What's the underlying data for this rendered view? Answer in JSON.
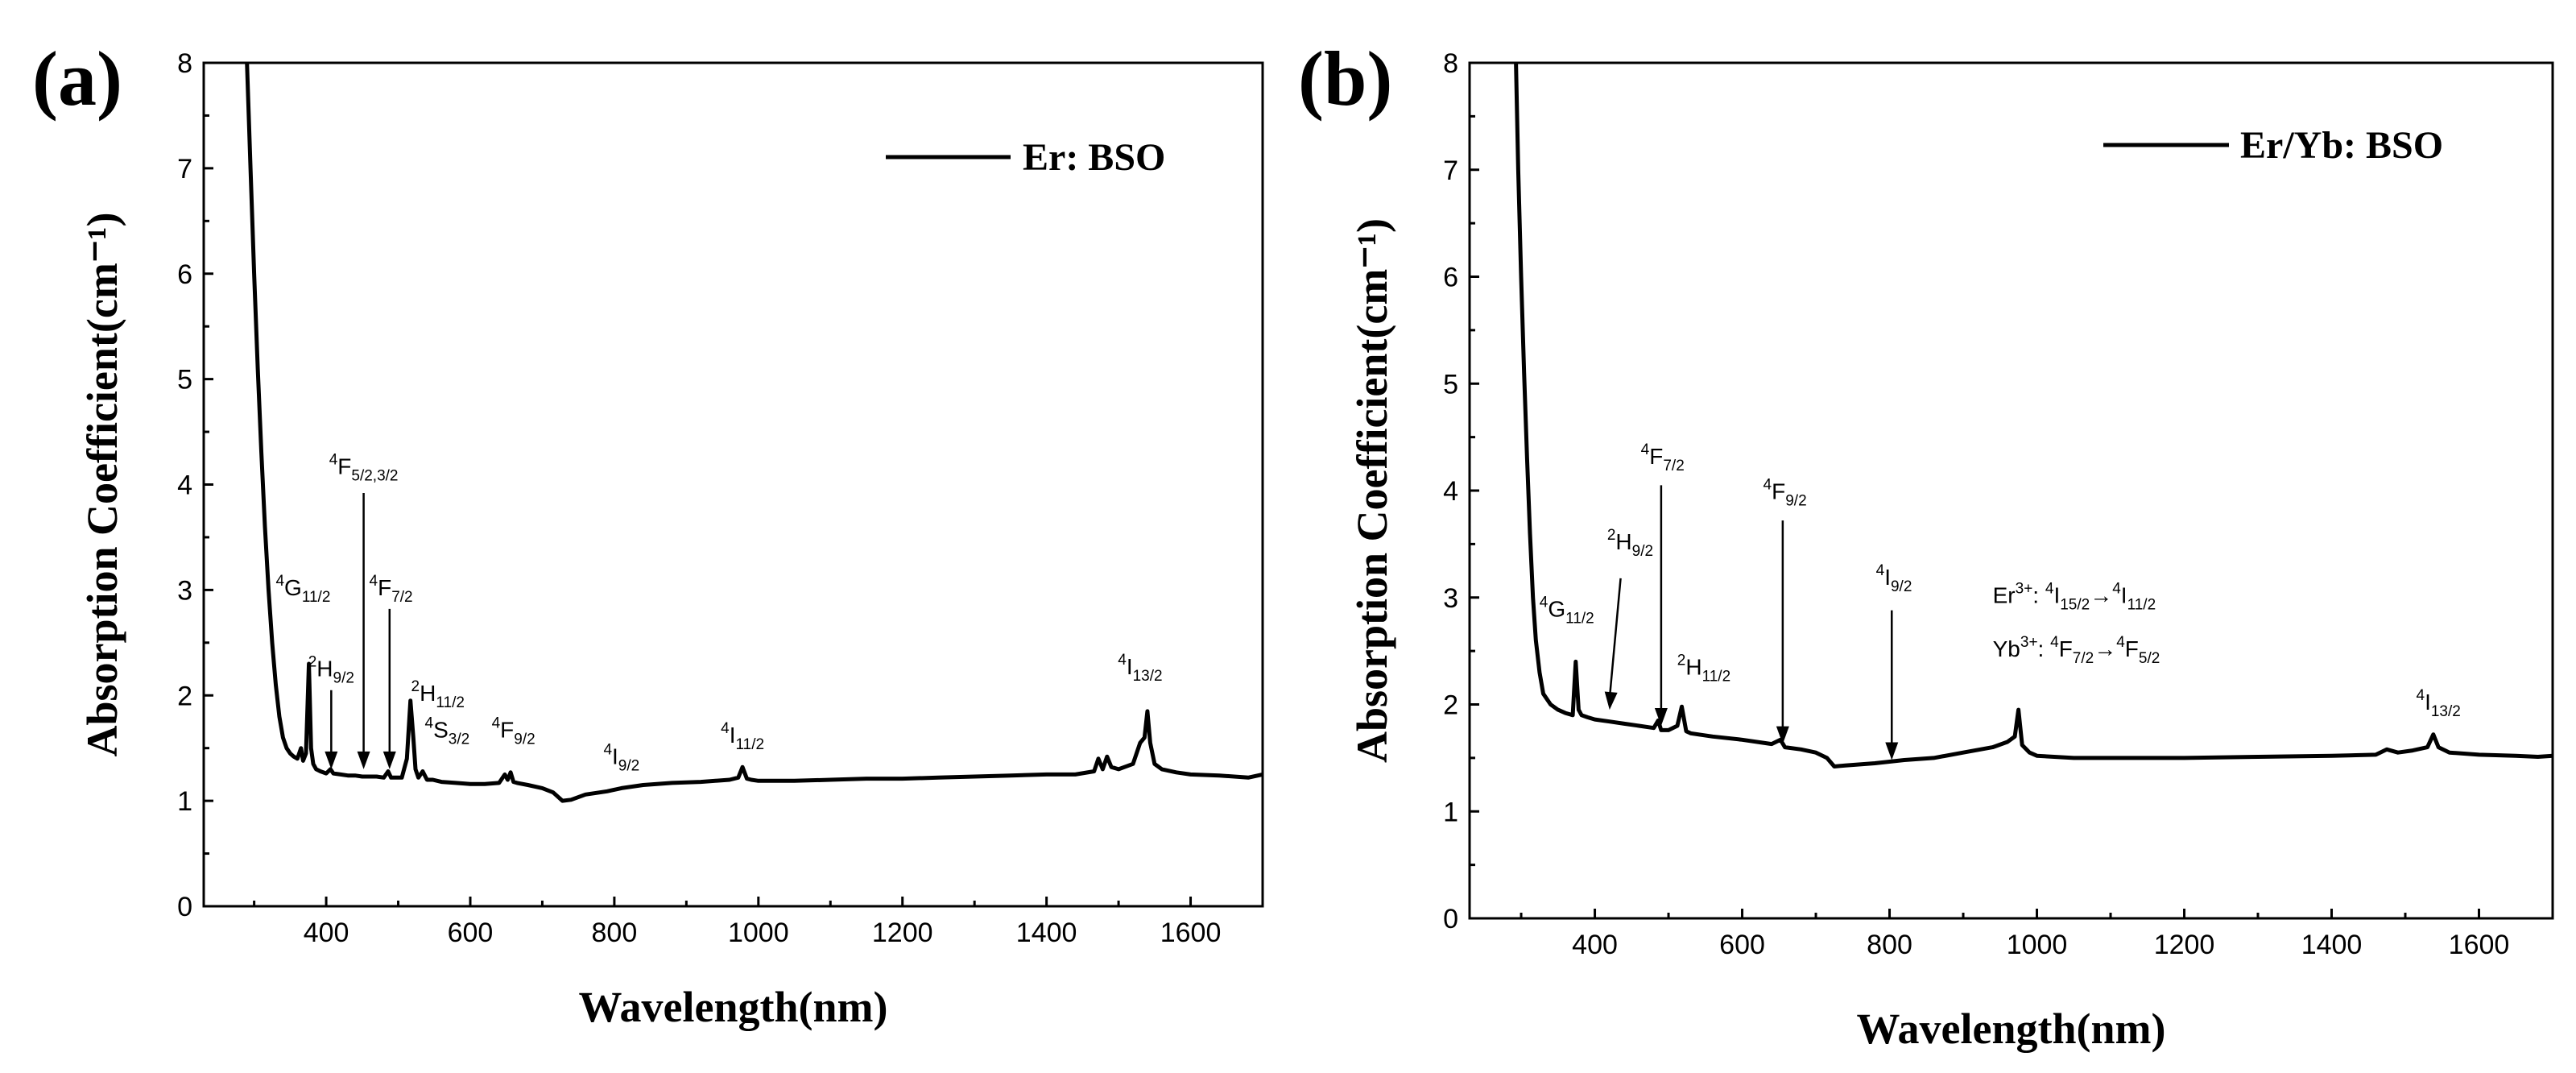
{
  "chart_data": [
    {
      "panel": "(a)",
      "type": "line",
      "xlabel": "Wavelength(nm)",
      "ylabel": "Absorption Coefficient(cm⁻¹)",
      "xlim": [
        230,
        1700
      ],
      "ylim": [
        0,
        8
      ],
      "xticks": [
        400,
        600,
        800,
        1000,
        1200,
        1400,
        1600
      ],
      "yticks": [
        0,
        1,
        2,
        3,
        4,
        5,
        6,
        7,
        8
      ],
      "legend": {
        "label": "Er: BSO",
        "position": "top-right"
      },
      "series": [
        {
          "name": "Er: BSO",
          "x": [
            290,
            295,
            300,
            305,
            310,
            315,
            320,
            325,
            330,
            335,
            340,
            345,
            350,
            355,
            360,
            365,
            368,
            372,
            376,
            379,
            382,
            386,
            392,
            400,
            406,
            410,
            420,
            430,
            440,
            450,
            460,
            470,
            480,
            486,
            490,
            495,
            505,
            512,
            517,
            521,
            524,
            528,
            534,
            540,
            548,
            560,
            580,
            600,
            620,
            640,
            648,
            652,
            656,
            660,
            665,
            680,
            700,
            715,
            728,
            740,
            760,
            790,
            810,
            840,
            880,
            920,
            960,
            972,
            978,
            984,
            990,
            1000,
            1050,
            1100,
            1150,
            1200,
            1250,
            1300,
            1350,
            1400,
            1440,
            1466,
            1472,
            1478,
            1484,
            1490,
            1500,
            1520,
            1530,
            1536,
            1540,
            1544,
            1550,
            1560,
            1580,
            1600,
            1640,
            1680,
            1700
          ],
          "y": [
            8.0,
            7.0,
            6.0,
            5.1,
            4.3,
            3.6,
            3.0,
            2.5,
            2.1,
            1.8,
            1.6,
            1.5,
            1.45,
            1.42,
            1.4,
            1.5,
            1.38,
            1.45,
            2.3,
            1.5,
            1.35,
            1.3,
            1.28,
            1.26,
            1.3,
            1.26,
            1.25,
            1.24,
            1.24,
            1.23,
            1.23,
            1.23,
            1.22,
            1.28,
            1.22,
            1.22,
            1.22,
            1.4,
            1.95,
            1.6,
            1.3,
            1.22,
            1.28,
            1.2,
            1.2,
            1.18,
            1.17,
            1.16,
            1.16,
            1.17,
            1.25,
            1.2,
            1.27,
            1.18,
            1.17,
            1.15,
            1.12,
            1.08,
            1.0,
            1.01,
            1.06,
            1.09,
            1.12,
            1.15,
            1.17,
            1.18,
            1.2,
            1.22,
            1.32,
            1.21,
            1.2,
            1.19,
            1.19,
            1.2,
            1.21,
            1.21,
            1.22,
            1.23,
            1.24,
            1.25,
            1.25,
            1.28,
            1.4,
            1.3,
            1.42,
            1.32,
            1.3,
            1.35,
            1.55,
            1.6,
            1.85,
            1.55,
            1.35,
            1.3,
            1.27,
            1.25,
            1.24,
            1.22,
            1.25
          ]
        }
      ],
      "annotations": [
        {
          "sup": "4",
          "base": "G",
          "sub": "11/2",
          "x": 368,
          "y": 2.95,
          "arrow": false
        },
        {
          "sup": "2",
          "base": "H",
          "sub": "9/2",
          "x": 407,
          "y": 2.18,
          "arrow": true,
          "ax": 407,
          "ay_from": 2.05,
          "ay_to": 1.3
        },
        {
          "sup": "4",
          "base": "F",
          "sub": "5/2,3/2",
          "x": 452,
          "y": 4.1,
          "arrow": true,
          "ax": 452,
          "ay_from": 3.92,
          "ay_to": 1.3
        },
        {
          "sup": "4",
          "base": "F",
          "sub": "7/2",
          "x": 490,
          "y": 2.95,
          "arrow": true,
          "ax": 488,
          "ay_from": 2.82,
          "ay_to": 1.3
        },
        {
          "sup": "2",
          "base": "H",
          "sub": "11/2",
          "x": 555,
          "y": 1.95,
          "arrow": false
        },
        {
          "sup": "4",
          "base": "S",
          "sub": "3/2",
          "x": 568,
          "y": 1.6,
          "arrow": false
        },
        {
          "sup": "4",
          "base": "F",
          "sub": "9/2",
          "x": 660,
          "y": 1.6,
          "arrow": false
        },
        {
          "sup": "4",
          "base": "I",
          "sub": "9/2",
          "x": 810,
          "y": 1.35,
          "arrow": false
        },
        {
          "sup": "4",
          "base": "I",
          "sub": "11/2",
          "x": 978,
          "y": 1.55,
          "arrow": false
        },
        {
          "sup": "4",
          "base": "I",
          "sub": "13/2",
          "x": 1530,
          "y": 2.2,
          "arrow": false
        }
      ]
    },
    {
      "panel": "(b)",
      "type": "line",
      "xlabel": "Wavelength(nm)",
      "ylabel": "Absorption Coefficient(cm⁻¹)",
      "xlim": [
        230,
        1700
      ],
      "ylim": [
        0,
        8
      ],
      "xticks": [
        400,
        600,
        800,
        1000,
        1200,
        1400,
        1600
      ],
      "yticks": [
        0,
        1,
        2,
        3,
        4,
        5,
        6,
        7,
        8
      ],
      "legend": {
        "label": "Er/Yb: BSO",
        "position": "top-right"
      },
      "series": [
        {
          "name": "Er/Yb: BSO",
          "x": [
            293,
            296,
            300,
            304,
            308,
            312,
            316,
            320,
            325,
            330,
            340,
            350,
            360,
            370,
            374,
            378,
            382,
            390,
            400,
            420,
            440,
            460,
            480,
            486,
            490,
            500,
            512,
            518,
            524,
            530,
            560,
            600,
            640,
            652,
            658,
            680,
            700,
            715,
            725,
            740,
            780,
            820,
            860,
            900,
            940,
            960,
            970,
            975,
            980,
            990,
            1000,
            1050,
            1100,
            1200,
            1300,
            1400,
            1460,
            1475,
            1490,
            1510,
            1530,
            1538,
            1545,
            1560,
            1600,
            1650,
            1680,
            1700
          ],
          "y": [
            8.0,
            7.0,
            6.0,
            5.1,
            4.3,
            3.6,
            3.0,
            2.6,
            2.3,
            2.1,
            2.0,
            1.95,
            1.92,
            1.9,
            2.4,
            1.95,
            1.9,
            1.88,
            1.86,
            1.84,
            1.82,
            1.8,
            1.78,
            1.85,
            1.76,
            1.76,
            1.8,
            1.98,
            1.75,
            1.73,
            1.7,
            1.67,
            1.63,
            1.67,
            1.6,
            1.58,
            1.55,
            1.5,
            1.42,
            1.43,
            1.45,
            1.48,
            1.5,
            1.55,
            1.6,
            1.65,
            1.7,
            1.95,
            1.62,
            1.55,
            1.52,
            1.5,
            1.5,
            1.5,
            1.51,
            1.52,
            1.53,
            1.58,
            1.55,
            1.57,
            1.6,
            1.72,
            1.6,
            1.55,
            1.53,
            1.52,
            1.51,
            1.52
          ]
        }
      ],
      "annotations": [
        {
          "sup": "4",
          "base": "G",
          "sub": "11/2",
          "x": 362,
          "y": 2.82,
          "arrow": false
        },
        {
          "sup": "2",
          "base": "H",
          "sub": "9/2",
          "x": 448,
          "y": 3.45,
          "arrow": true,
          "ax1": 435,
          "ay1": 3.18,
          "ax2": 420,
          "ay2": 1.95
        },
        {
          "sup": "4",
          "base": "F",
          "sub": "7/2",
          "x": 492,
          "y": 4.25,
          "arrow": true,
          "ax": 490,
          "ay_from": 4.05,
          "ay_to": 1.8
        },
        {
          "sup": "2",
          "base": "H",
          "sub": "11/2",
          "x": 548,
          "y": 2.28,
          "arrow": false
        },
        {
          "sup": "4",
          "base": "F",
          "sub": "9/2",
          "x": 658,
          "y": 3.92,
          "arrow": true,
          "ax": 655,
          "ay_from": 3.72,
          "ay_to": 1.63
        },
        {
          "sup": "4",
          "base": "I",
          "sub": "9/2",
          "x": 806,
          "y": 3.12,
          "arrow": true,
          "ax": 803,
          "ay_from": 2.88,
          "ay_to": 1.48
        },
        {
          "sup": "4",
          "base": "I",
          "sub": "13/2",
          "x": 1545,
          "y": 1.95,
          "arrow": false
        }
      ],
      "transition_labels": [
        {
          "ion": "Er",
          "charge": "3+",
          "from_sup": "4",
          "from_base": "I",
          "from_sub": "15/2",
          "to_sup": "4",
          "to_base": "I",
          "to_sub": "11/2",
          "x": 940,
          "y": 2.95
        },
        {
          "ion": "Yb",
          "charge": "3+",
          "from_sup": "4",
          "from_base": "F",
          "from_sub": "7/2",
          "to_sup": "4",
          "to_base": "F",
          "to_sub": "5/2",
          "x": 940,
          "y": 2.45
        }
      ]
    }
  ]
}
